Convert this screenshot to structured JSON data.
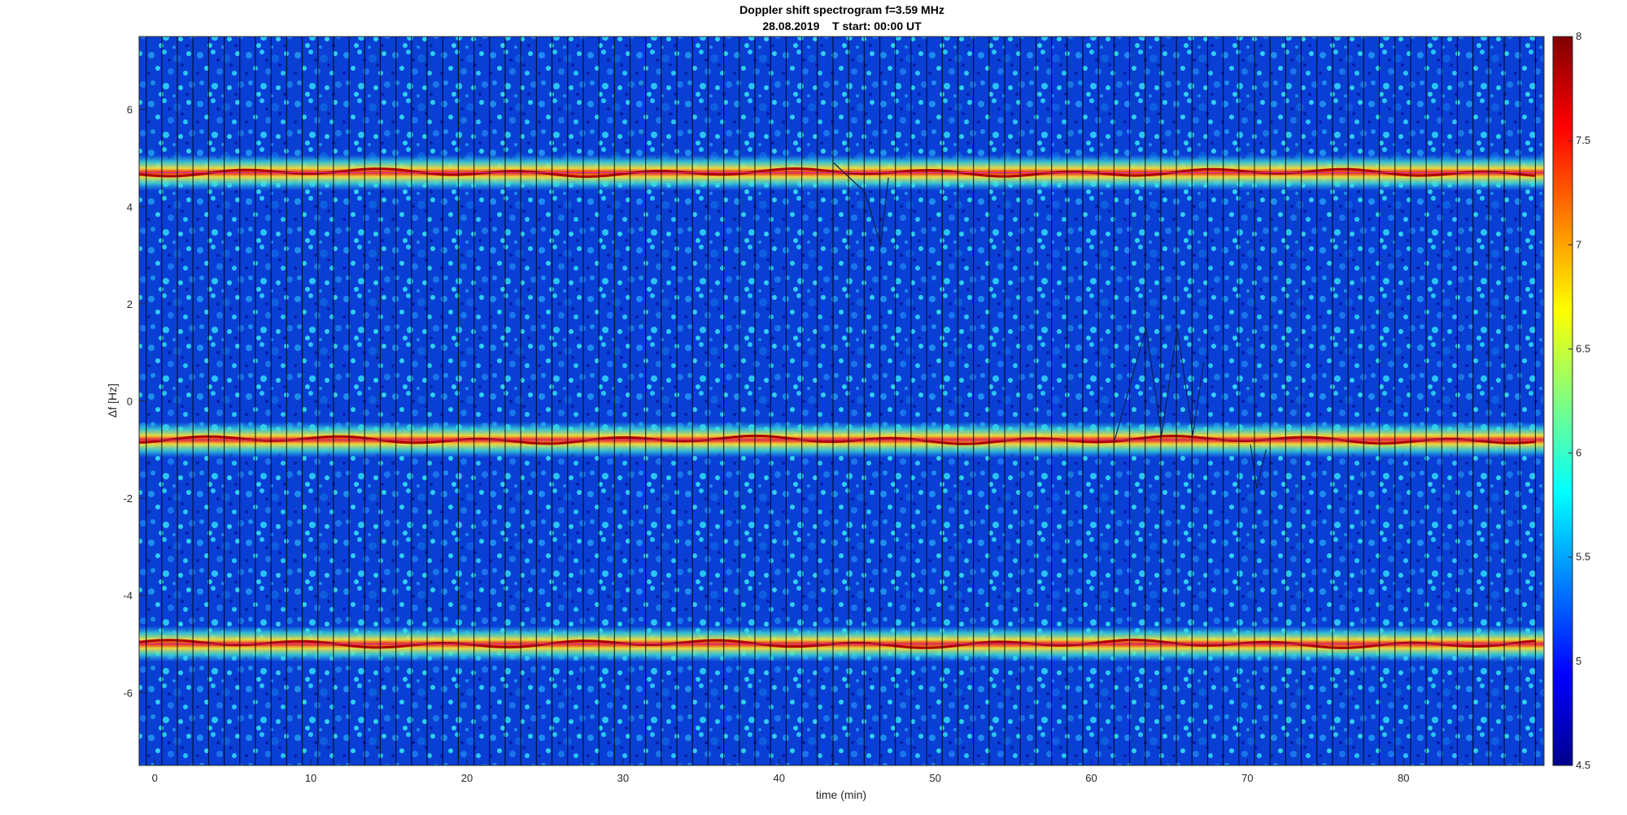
{
  "chart_data": {
    "type": "heatmap",
    "title": "Doppler shift spectrogram f=3.59 MHz",
    "subtitle": "28.08.2019    T start: 00:00 UT",
    "xlabel": "time (min)",
    "ylabel": "Δf [Hz]",
    "xlim": [
      -1,
      89
    ],
    "ylim": [
      -7.5,
      7.5
    ],
    "x_ticks": [
      0,
      10,
      20,
      30,
      40,
      50,
      60,
      70,
      80
    ],
    "y_ticks": [
      -6,
      -4,
      -2,
      0,
      2,
      4,
      6
    ],
    "colorbar": {
      "colormap": "jet",
      "range": [
        4.5,
        8
      ],
      "ticks": [
        "4.5",
        "5",
        "5.5",
        "6",
        "6.5",
        "7",
        "7.5",
        "8"
      ]
    },
    "grid": false,
    "signal_bands_hz": [
      4.7,
      -0.8,
      -5.0
    ],
    "segment_length_min": 1
  },
  "colors": {
    "background": "#ffffff",
    "axis": "#262626",
    "band_center": "#cc0000",
    "trace": "#cc44cc"
  }
}
